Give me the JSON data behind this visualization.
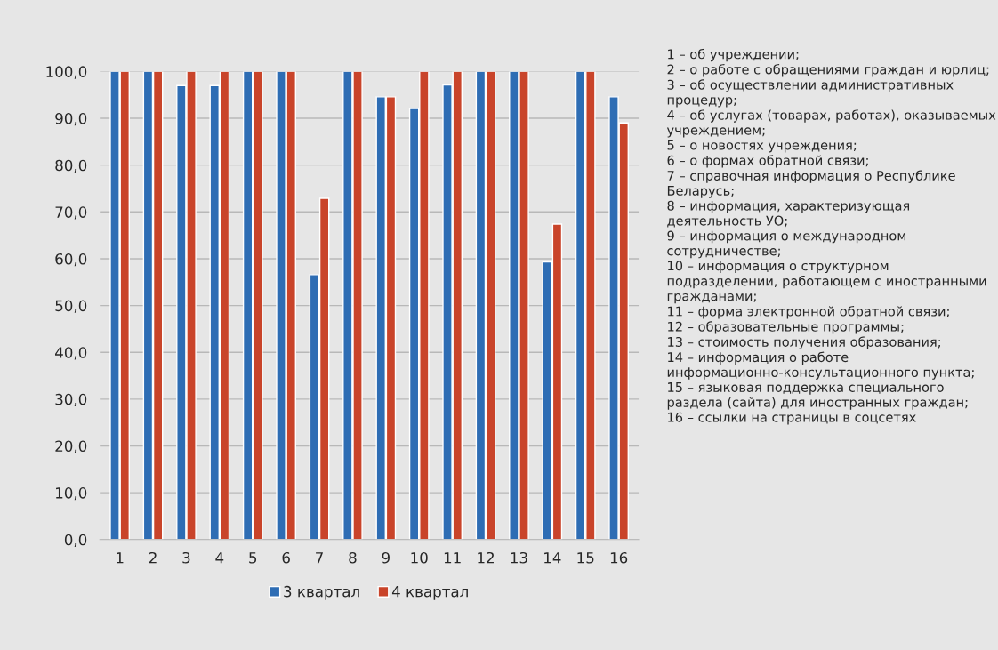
{
  "chart_data": {
    "type": "bar",
    "categories": [
      "1",
      "2",
      "3",
      "4",
      "5",
      "6",
      "7",
      "8",
      "9",
      "10",
      "11",
      "12",
      "13",
      "14",
      "15",
      "16"
    ],
    "series": [
      {
        "name": "3 квартал",
        "color": "#2e6db4",
        "values": [
          100,
          100,
          97.0,
          97.0,
          100,
          100,
          56.6,
          100,
          94.6,
          92.1,
          97.1,
          100,
          100,
          59.3,
          100,
          94.6
        ]
      },
      {
        "name": "4 квартал",
        "color": "#c9442a",
        "values": [
          100,
          100,
          100,
          100,
          100,
          100,
          72.9,
          100,
          94.6,
          100,
          100,
          100,
          100,
          67.4,
          100,
          89.0
        ]
      }
    ],
    "ylim": [
      0,
      100
    ],
    "yticks": [
      {
        "value": 0,
        "label": "0,0"
      },
      {
        "value": 10,
        "label": "10,0"
      },
      {
        "value": 20,
        "label": "20,0"
      },
      {
        "value": 30,
        "label": "30,0"
      },
      {
        "value": 40,
        "label": "40,0"
      },
      {
        "value": 50,
        "label": "50,0"
      },
      {
        "value": 60,
        "label": "60,0"
      },
      {
        "value": 70,
        "label": "70,0"
      },
      {
        "value": 80,
        "label": "80,0"
      },
      {
        "value": 90,
        "label": "90,0"
      },
      {
        "value": 100,
        "label": "100,0"
      }
    ],
    "grid": "y",
    "legend": "bottom",
    "annotations": [
      "1 – об учреждении;",
      "2 – о работе с обращениями граждан и юрлиц;",
      "3 – об осуществлении административных процедур;",
      "4 – об услугах (товарах, работах), оказываемых учреждением;",
      "5 – о новостях учреждения;",
      "6 – о формах обратной связи;",
      "7 – справочная информация о Республике Беларусь;",
      "8 – информация, характеризующая деятельность УО;",
      "9 – информация о международном сотрудничестве;",
      "10 – информация о структурном подразделении, работающем с иностранными гражданами;",
      "11 – форма электронной обратной связи;",
      "12 – образовательные программы;",
      "13 – стоимость получения образования;",
      "14 – информация о работе информационно-консультационного пункта;",
      "15 – языковая поддержка специального раздела (сайта) для иностранных граждан;",
      "16 – ссылки на страницы в соцсетях"
    ]
  }
}
